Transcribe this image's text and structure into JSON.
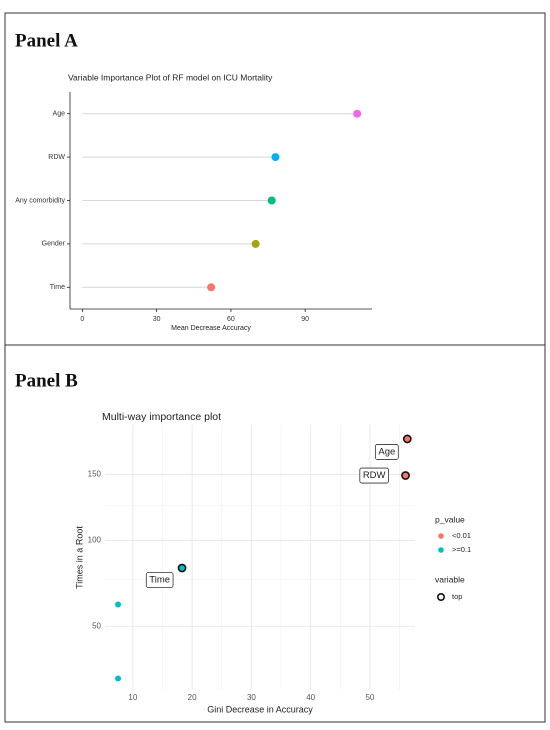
{
  "chart_data": [
    {
      "type": "lollipop",
      "panel_label": "Panel A",
      "title": "Variable Importance Plot of RF model on ICU Mortality",
      "x_label": "Mean Decrease Accuracy",
      "categories": [
        "Age",
        "RDW",
        "Any comorbidity",
        "Gender",
        "Time"
      ],
      "values": [
        111,
        78,
        76.5,
        70,
        52
      ],
      "colors": [
        "#f564e3",
        "#00b0f6",
        "#00bf7d",
        "#a3a500",
        "#f8766d"
      ],
      "xlim": [
        -5,
        117
      ],
      "xticks": [
        0,
        30,
        60,
        90
      ]
    },
    {
      "type": "scatter",
      "panel_label": "Panel B",
      "title": "Multi-way importance plot",
      "x_label": "Gini Decrease in Accuracy",
      "y_label": "Times in a Root",
      "xlim": [
        5.3,
        57.6
      ],
      "xticks": [
        10,
        20,
        30,
        40,
        50
      ],
      "ylim": [
        24,
        194
      ],
      "yticks": [
        50,
        100,
        150
      ],
      "yscale": "sqrt",
      "grid": true,
      "legend_title": "p_value",
      "shape_legend": {
        "title": "variable",
        "label": "top"
      },
      "series": [
        {
          "name": "<0.01",
          "color": "#f8766d",
          "x": [
            56.3,
            56
          ],
          "values": [
            181,
            149
          ],
          "labels": [
            "Age",
            "RDW"
          ],
          "top": [
            true,
            true
          ]
        },
        {
          "name": ">=0.1",
          "color": "#00bfc4",
          "x": [
            18.3,
            7.5,
            7.5
          ],
          "values": [
            82,
            61,
            28
          ],
          "labels": [
            "Time",
            null,
            null
          ],
          "top": [
            true,
            false,
            false
          ]
        }
      ]
    }
  ]
}
